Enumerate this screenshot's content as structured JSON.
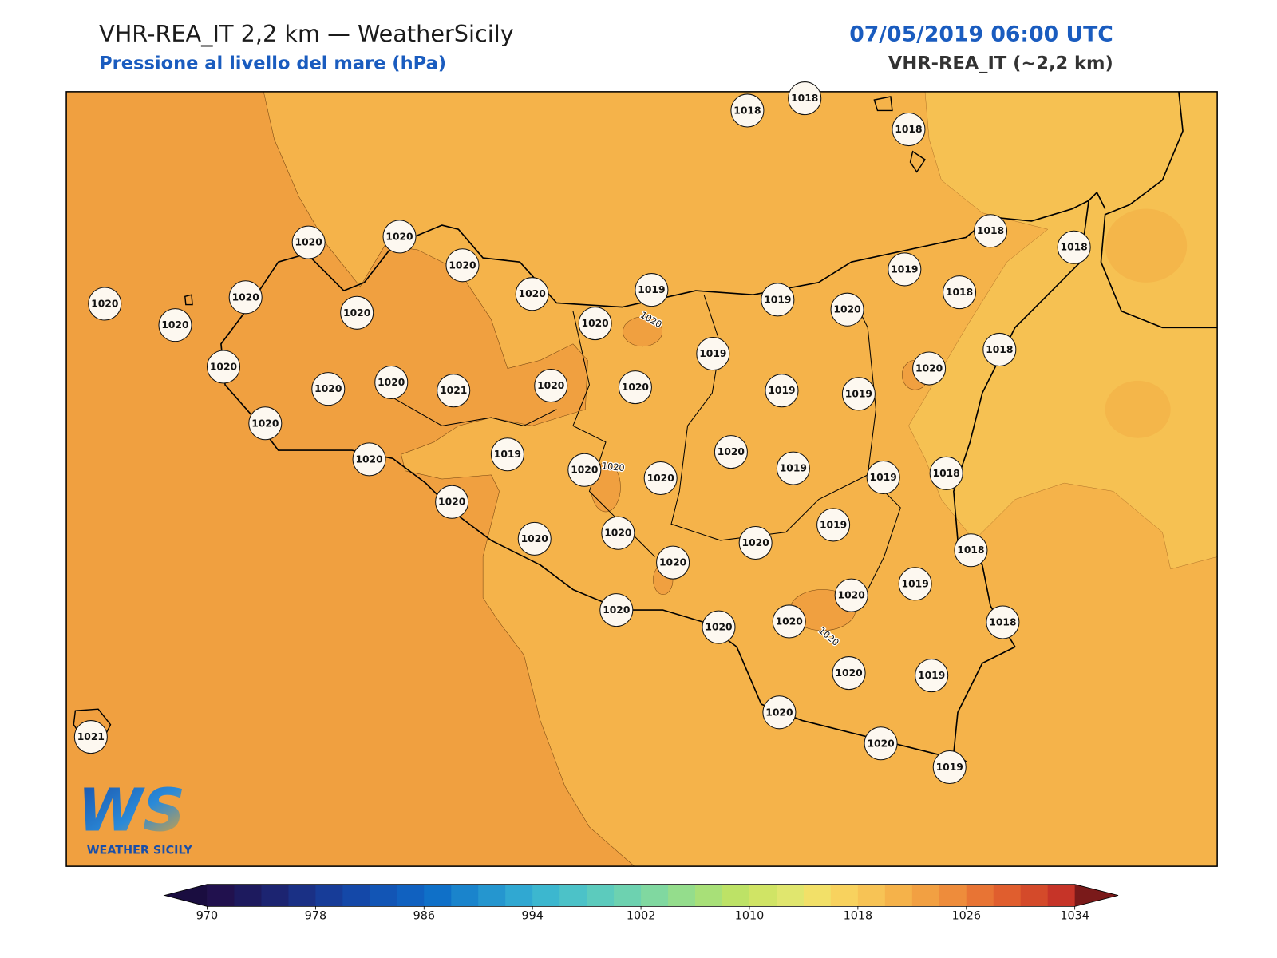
{
  "header": {
    "title": "VHR-REA_IT 2,2 km — WeatherSicily",
    "subtitle": "Pressione al livello del mare (hPa)",
    "datetime": "07/05/2019 06:00 UTC",
    "model": "VHR-REA_IT (~2,2 km)"
  },
  "map": {
    "stations": [
      1018,
      1018,
      1018,
      1020,
      1020,
      1020,
      1018,
      1018,
      1019,
      1020,
      1020,
      1020,
      1020,
      1020,
      1019,
      1020,
      1019,
      1020,
      1018,
      1019,
      1018,
      1020,
      1020,
      1020,
      1020,
      1021,
      1020,
      1020,
      1019,
      1019,
      1020,
      1020,
      1019,
      1020,
      1020,
      1020,
      1019,
      1019,
      1018,
      1020,
      1019,
      1020,
      1020,
      1020,
      1020,
      1018,
      1019,
      1020,
      1020,
      1020,
      1020,
      1018,
      1020,
      1019,
      1020,
      1020,
      1019,
      1021
    ],
    "contour_labels": [
      1020,
      1020,
      1020
    ]
  },
  "colorbar": {
    "lim": [
      970,
      1034
    ],
    "ticks": [
      970,
      978,
      986,
      994,
      1002,
      1010,
      1018,
      1026,
      1034
    ],
    "colors": [
      "#21114e",
      "#1d1a5e",
      "#1c2471",
      "#1a3085",
      "#173c98",
      "#1448a8",
      "#1255b5",
      "#1061c0",
      "#0f70c8",
      "#1a84cc",
      "#2596cf",
      "#30a8d2",
      "#3cb7cf",
      "#4cc2c8",
      "#5ccbbd",
      "#6dd2b0",
      "#80d8a0",
      "#94dd8c",
      "#a8e078",
      "#bde266",
      "#d0e465",
      "#e0e66e",
      "#f2e068",
      "#f8d25e",
      "#f7c355",
      "#f5b24a",
      "#f2a042",
      "#ee8c3b",
      "#e87434",
      "#e05e2e",
      "#d44a2a",
      "#c63428"
    ],
    "under_color": "#1a0d40",
    "over_color": "#7a1a1a"
  },
  "logo": {
    "mark": "WS",
    "name": "WEATHER SICILY"
  }
}
